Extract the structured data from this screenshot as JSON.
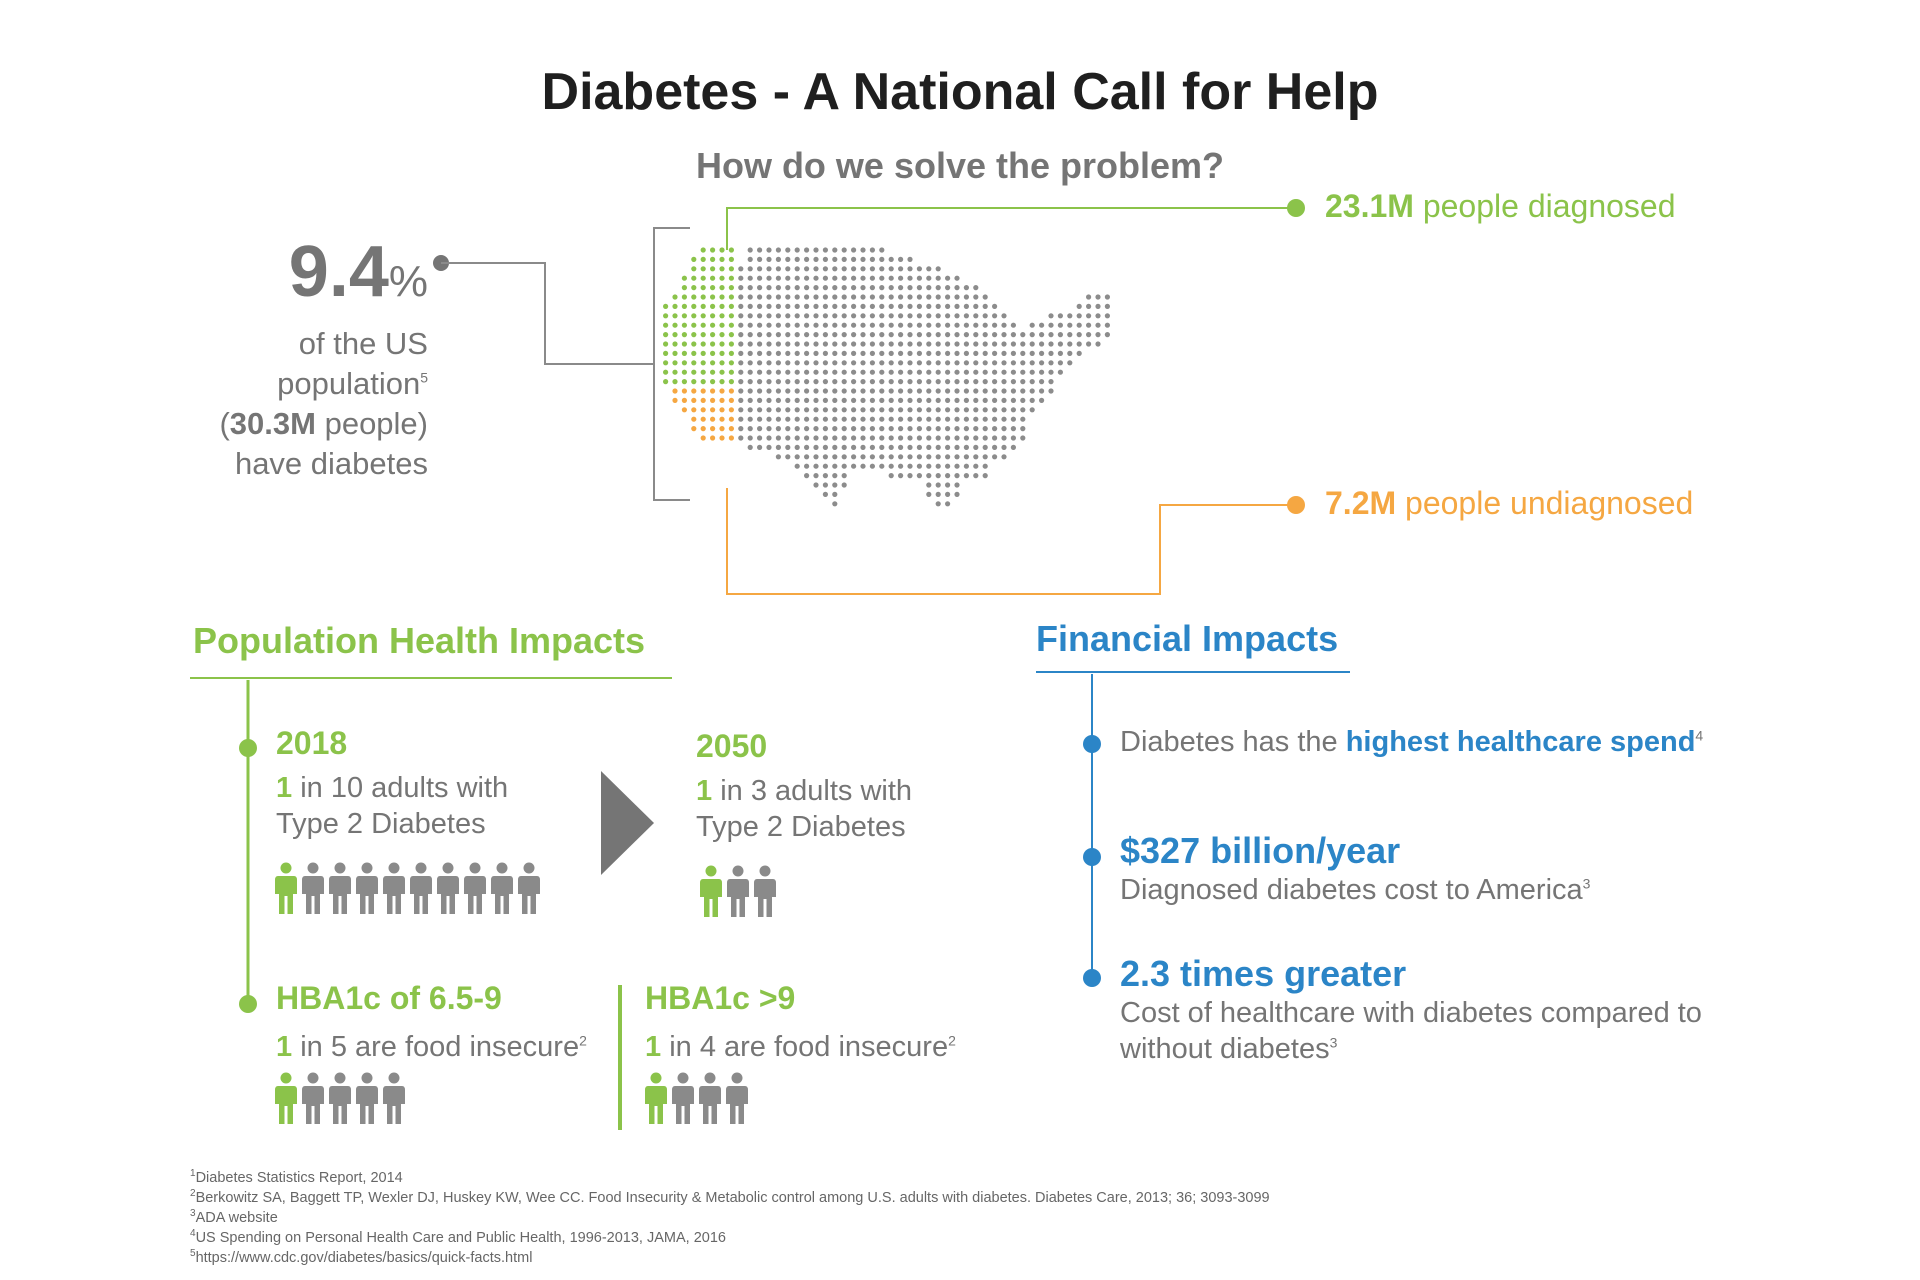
{
  "header": {
    "title": "Diabetes - A National Call for Help",
    "subtitle": "How do we solve the problem?"
  },
  "prevalence": {
    "value": "9.4",
    "unit": "%",
    "line1": "of the US",
    "line2": "population",
    "line2_ref": "5",
    "line3_open": "(",
    "line3_value": "30.3M",
    "line3_rest": " people)",
    "line4": "have diabetes"
  },
  "map_callouts": {
    "diagnosed_value": "23.1M",
    "diagnosed_label": " people diagnosed",
    "undiagnosed_value": "7.2M",
    "undiagnosed_label": " people undiagnosed"
  },
  "population": {
    "heading": "Population Health Impacts",
    "y2018": {
      "year": "2018",
      "ratio_num": "1",
      "ratio_text": " in 10 adults with",
      "line2": "Type 2 Diabetes",
      "highlighted": 1,
      "total": 10
    },
    "y2050": {
      "year": "2050",
      "ratio_num": "1",
      "ratio_text": " in 3 adults with",
      "line2": "Type 2 Diabetes",
      "highlighted": 1,
      "total": 3
    },
    "hba_low": {
      "label": "HBA1c of 6.5-9",
      "ratio_num": "1",
      "ratio_text": " in 5 are food insecure",
      "ref": "2",
      "highlighted": 1,
      "total": 5
    },
    "hba_high": {
      "label": "HBA1c >9",
      "ratio_num": "1",
      "ratio_text": " in 4 are food insecure",
      "ref": "2",
      "highlighted": 1,
      "total": 4
    }
  },
  "financial": {
    "heading": "Financial Impacts",
    "item1_text": "Diabetes has the ",
    "item1_highlight": "highest healthcare spend",
    "item1_ref": "4",
    "item2_head": "$327 billion/year",
    "item2_text": "Diagnosed diabetes cost to America",
    "item2_ref": "3",
    "item3_head": "2.3 times greater",
    "item3_line1": "Cost of healthcare with diabetes compared to",
    "item3_line2": "without diabetes",
    "item3_ref": "3"
  },
  "footnotes": [
    {
      "num": "1",
      "text": "Diabetes Statistics Report, 2014"
    },
    {
      "num": "2",
      "text": "Berkowitz SA, Baggett TP, Wexler DJ, Huskey KW, Wee CC. Food Insecurity & Metabolic control among U.S. adults with diabetes. Diabetes Care, 2013; 36; 3093-3099"
    },
    {
      "num": "3",
      "text": "ADA website"
    },
    {
      "num": "4",
      "text": "US Spending on Personal Health  Care and Public Health, 1996-2013, JAMA, 2016"
    },
    {
      "num": "5",
      "text": "https://www.cdc.gov/diabetes/basics/quick-facts.html"
    }
  ],
  "colors": {
    "green": "#8bc34a",
    "orange": "#f5a742",
    "blue": "#2b85c7",
    "grey": "#757575",
    "dark": "#1f1f1f"
  }
}
